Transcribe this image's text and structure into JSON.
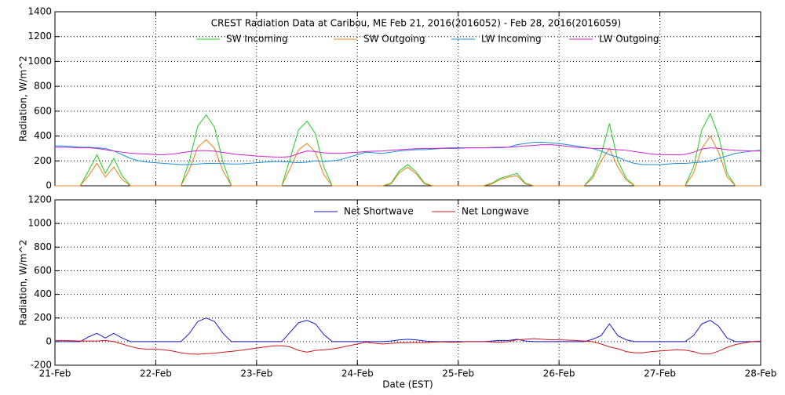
{
  "chart_data": [
    {
      "type": "line",
      "title": "CREST Radiation Data at Caribou, ME   Feb 21, 2016(2016052) - Feb 28, 2016(2016059)",
      "y_label": "Radiation, W/m^2",
      "grid": true,
      "legend": "top",
      "x": [
        0,
        2,
        4,
        6,
        8,
        10,
        12,
        14,
        16,
        18,
        20,
        22,
        24,
        26,
        28,
        30,
        32,
        34,
        36,
        38,
        40,
        42,
        44,
        46,
        48,
        50,
        52,
        54,
        56,
        58,
        60,
        62,
        64,
        66,
        68,
        70,
        72,
        74,
        76,
        78,
        80,
        82,
        84,
        86,
        88,
        90,
        92,
        94,
        96,
        98,
        100,
        102,
        104,
        106,
        108,
        110,
        112,
        114,
        116,
        118,
        120,
        122,
        124,
        126,
        128,
        130,
        132,
        134,
        136,
        138,
        140,
        142,
        144,
        146,
        148,
        150,
        152,
        154,
        156,
        158,
        160,
        162,
        164,
        166,
        168
      ],
      "xlim": [
        0,
        168
      ],
      "xticks": [
        0,
        24,
        48,
        72,
        96,
        120,
        144,
        168
      ],
      "ylim": [
        0,
        1400
      ],
      "yticks": [
        0,
        200,
        400,
        600,
        800,
        1000,
        1200,
        1400
      ],
      "series": [
        {
          "name": "SW Incoming",
          "color": "#22cc22",
          "values": [
            0,
            0,
            0,
            0,
            120,
            250,
            100,
            220,
            80,
            0,
            0,
            0,
            0,
            0,
            0,
            0,
            200,
            480,
            570,
            470,
            190,
            0,
            0,
            0,
            0,
            0,
            0,
            0,
            220,
            450,
            520,
            420,
            150,
            0,
            0,
            0,
            0,
            0,
            0,
            0,
            20,
            120,
            170,
            110,
            20,
            0,
            0,
            0,
            0,
            0,
            0,
            0,
            20,
            60,
            80,
            100,
            20,
            0,
            0,
            0,
            0,
            0,
            0,
            0,
            80,
            250,
            500,
            200,
            60,
            0,
            0,
            0,
            0,
            0,
            0,
            0,
            150,
            450,
            580,
            400,
            100,
            0,
            0,
            0,
            0
          ]
        },
        {
          "name": "SW Outgoing",
          "color": "#e8801a",
          "values": [
            0,
            0,
            0,
            0,
            80,
            180,
            70,
            150,
            50,
            0,
            0,
            0,
            0,
            0,
            0,
            0,
            130,
            310,
            370,
            300,
            120,
            0,
            0,
            0,
            0,
            0,
            0,
            0,
            140,
            290,
            340,
            270,
            90,
            0,
            0,
            0,
            0,
            0,
            0,
            0,
            15,
            105,
            150,
            95,
            15,
            0,
            0,
            0,
            0,
            0,
            0,
            0,
            15,
            50,
            70,
            80,
            15,
            0,
            0,
            0,
            0,
            0,
            0,
            0,
            60,
            200,
            300,
            150,
            45,
            0,
            0,
            0,
            0,
            0,
            0,
            0,
            100,
            300,
            400,
            270,
            70,
            0,
            0,
            0,
            0
          ]
        },
        {
          "name": "LW Incoming",
          "color": "#1a8fd6",
          "values": [
            320,
            320,
            315,
            310,
            310,
            305,
            300,
            280,
            250,
            220,
            200,
            190,
            185,
            180,
            175,
            170,
            170,
            175,
            180,
            180,
            178,
            175,
            175,
            180,
            185,
            190,
            195,
            195,
            190,
            185,
            190,
            200,
            195,
            200,
            210,
            230,
            250,
            270,
            265,
            260,
            270,
            280,
            285,
            290,
            290,
            295,
            300,
            300,
            300,
            305,
            305,
            305,
            305,
            305,
            310,
            330,
            340,
            350,
            350,
            345,
            340,
            330,
            320,
            310,
            300,
            280,
            250,
            230,
            200,
            180,
            170,
            170,
            170,
            175,
            180,
            180,
            185,
            190,
            200,
            220,
            240,
            260,
            270,
            280,
            285
          ]
        },
        {
          "name": "LW Outgoing",
          "color": "#cc22cc",
          "values": [
            310,
            310,
            308,
            305,
            305,
            300,
            290,
            280,
            270,
            262,
            258,
            255,
            250,
            250,
            255,
            265,
            275,
            282,
            282,
            278,
            268,
            258,
            250,
            245,
            240,
            235,
            232,
            230,
            235,
            260,
            280,
            275,
            265,
            262,
            260,
            265,
            270,
            275,
            278,
            280,
            285,
            290,
            295,
            298,
            300,
            300,
            302,
            305,
            305,
            305,
            305,
            305,
            308,
            310,
            310,
            315,
            320,
            325,
            330,
            330,
            325,
            318,
            310,
            305,
            300,
            300,
            295,
            290,
            285,
            275,
            265,
            255,
            250,
            250,
            248,
            252,
            270,
            295,
            305,
            300,
            290,
            285,
            282,
            280,
            280
          ]
        }
      ]
    },
    {
      "type": "line",
      "y_label": "Radiation, W/m^2",
      "x_label": "Date (EST)",
      "grid": true,
      "legend": "top",
      "x": [
        0,
        2,
        4,
        6,
        8,
        10,
        12,
        14,
        16,
        18,
        20,
        22,
        24,
        26,
        28,
        30,
        32,
        34,
        36,
        38,
        40,
        42,
        44,
        46,
        48,
        50,
        52,
        54,
        56,
        58,
        60,
        62,
        64,
        66,
        68,
        70,
        72,
        74,
        76,
        78,
        80,
        82,
        84,
        86,
        88,
        90,
        92,
        94,
        96,
        98,
        100,
        102,
        104,
        106,
        108,
        110,
        112,
        114,
        116,
        118,
        120,
        122,
        124,
        126,
        128,
        130,
        132,
        134,
        136,
        138,
        140,
        142,
        144,
        146,
        148,
        150,
        152,
        154,
        156,
        158,
        160,
        162,
        164,
        166,
        168
      ],
      "xlim": [
        0,
        168
      ],
      "xticks": [
        {
          "value": 0,
          "label": "21-Feb"
        },
        {
          "value": 24,
          "label": "22-Feb"
        },
        {
          "value": 48,
          "label": "23-Feb"
        },
        {
          "value": 72,
          "label": "24-Feb"
        },
        {
          "value": 96,
          "label": "25-Feb"
        },
        {
          "value": 120,
          "label": "26-Feb"
        },
        {
          "value": 144,
          "label": "27-Feb"
        },
        {
          "value": 168,
          "label": "28-Feb"
        }
      ],
      "ylim": [
        -200,
        1200
      ],
      "yticks": [
        -200,
        0,
        200,
        400,
        600,
        800,
        1000,
        1200
      ],
      "series": [
        {
          "name": "Net Shortwave",
          "color": "#1a1acc",
          "values": [
            0,
            0,
            0,
            0,
            40,
            70,
            30,
            70,
            30,
            0,
            0,
            0,
            0,
            0,
            0,
            0,
            70,
            170,
            200,
            170,
            70,
            0,
            0,
            0,
            0,
            0,
            0,
            0,
            80,
            160,
            180,
            150,
            60,
            0,
            0,
            0,
            0,
            0,
            0,
            0,
            5,
            15,
            20,
            15,
            5,
            0,
            0,
            0,
            0,
            0,
            0,
            0,
            5,
            10,
            10,
            20,
            5,
            0,
            0,
            0,
            0,
            0,
            0,
            0,
            20,
            50,
            150,
            50,
            15,
            0,
            0,
            0,
            0,
            0,
            0,
            0,
            50,
            150,
            180,
            130,
            30,
            0,
            0,
            0,
            0
          ]
        },
        {
          "name": "Net Longwave",
          "color": "#cc1a1a",
          "values": [
            10,
            10,
            7,
            5,
            5,
            5,
            10,
            0,
            -20,
            -42,
            -58,
            -65,
            -65,
            -70,
            -80,
            -95,
            -105,
            -107,
            -102,
            -98,
            -90,
            -83,
            -75,
            -65,
            -55,
            -45,
            -37,
            -35,
            -45,
            -75,
            -90,
            -75,
            -70,
            -62,
            -50,
            -35,
            -20,
            -5,
            -13,
            -20,
            -15,
            -10,
            -10,
            -8,
            -10,
            -5,
            -2,
            -5,
            -5,
            0,
            0,
            0,
            -3,
            -5,
            0,
            15,
            20,
            25,
            20,
            15,
            15,
            12,
            10,
            5,
            0,
            -20,
            -45,
            -60,
            -85,
            -95,
            -95,
            -85,
            -80,
            -75,
            -68,
            -72,
            -85,
            -105,
            -105,
            -80,
            -50,
            -25,
            -12,
            0,
            5
          ]
        }
      ]
    }
  ]
}
